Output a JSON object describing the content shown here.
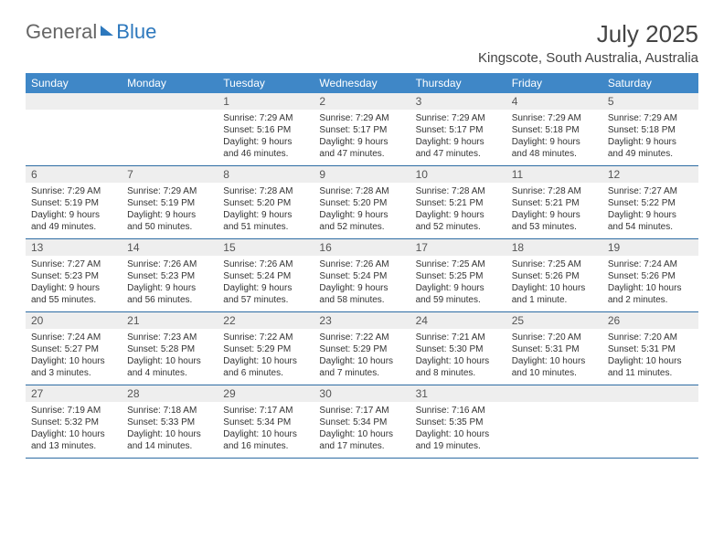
{
  "logo": {
    "text_general": "General",
    "text_blue": "Blue"
  },
  "header": {
    "month_title": "July 2025",
    "location": "Kingscote, South Australia, Australia"
  },
  "colors": {
    "header_bg": "#3f87c7",
    "header_text": "#ffffff",
    "daynum_bg": "#eeeeee",
    "week_border": "#2d6ca3",
    "logo_accent": "#2d78bd"
  },
  "day_headers": [
    "Sunday",
    "Monday",
    "Tuesday",
    "Wednesday",
    "Thursday",
    "Friday",
    "Saturday"
  ],
  "weeks": [
    [
      {
        "n": "",
        "sunrise": "",
        "sunset": "",
        "daylight1": "",
        "daylight2": ""
      },
      {
        "n": "",
        "sunrise": "",
        "sunset": "",
        "daylight1": "",
        "daylight2": ""
      },
      {
        "n": "1",
        "sunrise": "Sunrise: 7:29 AM",
        "sunset": "Sunset: 5:16 PM",
        "daylight1": "Daylight: 9 hours",
        "daylight2": "and 46 minutes."
      },
      {
        "n": "2",
        "sunrise": "Sunrise: 7:29 AM",
        "sunset": "Sunset: 5:17 PM",
        "daylight1": "Daylight: 9 hours",
        "daylight2": "and 47 minutes."
      },
      {
        "n": "3",
        "sunrise": "Sunrise: 7:29 AM",
        "sunset": "Sunset: 5:17 PM",
        "daylight1": "Daylight: 9 hours",
        "daylight2": "and 47 minutes."
      },
      {
        "n": "4",
        "sunrise": "Sunrise: 7:29 AM",
        "sunset": "Sunset: 5:18 PM",
        "daylight1": "Daylight: 9 hours",
        "daylight2": "and 48 minutes."
      },
      {
        "n": "5",
        "sunrise": "Sunrise: 7:29 AM",
        "sunset": "Sunset: 5:18 PM",
        "daylight1": "Daylight: 9 hours",
        "daylight2": "and 49 minutes."
      }
    ],
    [
      {
        "n": "6",
        "sunrise": "Sunrise: 7:29 AM",
        "sunset": "Sunset: 5:19 PM",
        "daylight1": "Daylight: 9 hours",
        "daylight2": "and 49 minutes."
      },
      {
        "n": "7",
        "sunrise": "Sunrise: 7:29 AM",
        "sunset": "Sunset: 5:19 PM",
        "daylight1": "Daylight: 9 hours",
        "daylight2": "and 50 minutes."
      },
      {
        "n": "8",
        "sunrise": "Sunrise: 7:28 AM",
        "sunset": "Sunset: 5:20 PM",
        "daylight1": "Daylight: 9 hours",
        "daylight2": "and 51 minutes."
      },
      {
        "n": "9",
        "sunrise": "Sunrise: 7:28 AM",
        "sunset": "Sunset: 5:20 PM",
        "daylight1": "Daylight: 9 hours",
        "daylight2": "and 52 minutes."
      },
      {
        "n": "10",
        "sunrise": "Sunrise: 7:28 AM",
        "sunset": "Sunset: 5:21 PM",
        "daylight1": "Daylight: 9 hours",
        "daylight2": "and 52 minutes."
      },
      {
        "n": "11",
        "sunrise": "Sunrise: 7:28 AM",
        "sunset": "Sunset: 5:21 PM",
        "daylight1": "Daylight: 9 hours",
        "daylight2": "and 53 minutes."
      },
      {
        "n": "12",
        "sunrise": "Sunrise: 7:27 AM",
        "sunset": "Sunset: 5:22 PM",
        "daylight1": "Daylight: 9 hours",
        "daylight2": "and 54 minutes."
      }
    ],
    [
      {
        "n": "13",
        "sunrise": "Sunrise: 7:27 AM",
        "sunset": "Sunset: 5:23 PM",
        "daylight1": "Daylight: 9 hours",
        "daylight2": "and 55 minutes."
      },
      {
        "n": "14",
        "sunrise": "Sunrise: 7:26 AM",
        "sunset": "Sunset: 5:23 PM",
        "daylight1": "Daylight: 9 hours",
        "daylight2": "and 56 minutes."
      },
      {
        "n": "15",
        "sunrise": "Sunrise: 7:26 AM",
        "sunset": "Sunset: 5:24 PM",
        "daylight1": "Daylight: 9 hours",
        "daylight2": "and 57 minutes."
      },
      {
        "n": "16",
        "sunrise": "Sunrise: 7:26 AM",
        "sunset": "Sunset: 5:24 PM",
        "daylight1": "Daylight: 9 hours",
        "daylight2": "and 58 minutes."
      },
      {
        "n": "17",
        "sunrise": "Sunrise: 7:25 AM",
        "sunset": "Sunset: 5:25 PM",
        "daylight1": "Daylight: 9 hours",
        "daylight2": "and 59 minutes."
      },
      {
        "n": "18",
        "sunrise": "Sunrise: 7:25 AM",
        "sunset": "Sunset: 5:26 PM",
        "daylight1": "Daylight: 10 hours",
        "daylight2": "and 1 minute."
      },
      {
        "n": "19",
        "sunrise": "Sunrise: 7:24 AM",
        "sunset": "Sunset: 5:26 PM",
        "daylight1": "Daylight: 10 hours",
        "daylight2": "and 2 minutes."
      }
    ],
    [
      {
        "n": "20",
        "sunrise": "Sunrise: 7:24 AM",
        "sunset": "Sunset: 5:27 PM",
        "daylight1": "Daylight: 10 hours",
        "daylight2": "and 3 minutes."
      },
      {
        "n": "21",
        "sunrise": "Sunrise: 7:23 AM",
        "sunset": "Sunset: 5:28 PM",
        "daylight1": "Daylight: 10 hours",
        "daylight2": "and 4 minutes."
      },
      {
        "n": "22",
        "sunrise": "Sunrise: 7:22 AM",
        "sunset": "Sunset: 5:29 PM",
        "daylight1": "Daylight: 10 hours",
        "daylight2": "and 6 minutes."
      },
      {
        "n": "23",
        "sunrise": "Sunrise: 7:22 AM",
        "sunset": "Sunset: 5:29 PM",
        "daylight1": "Daylight: 10 hours",
        "daylight2": "and 7 minutes."
      },
      {
        "n": "24",
        "sunrise": "Sunrise: 7:21 AM",
        "sunset": "Sunset: 5:30 PM",
        "daylight1": "Daylight: 10 hours",
        "daylight2": "and 8 minutes."
      },
      {
        "n": "25",
        "sunrise": "Sunrise: 7:20 AM",
        "sunset": "Sunset: 5:31 PM",
        "daylight1": "Daylight: 10 hours",
        "daylight2": "and 10 minutes."
      },
      {
        "n": "26",
        "sunrise": "Sunrise: 7:20 AM",
        "sunset": "Sunset: 5:31 PM",
        "daylight1": "Daylight: 10 hours",
        "daylight2": "and 11 minutes."
      }
    ],
    [
      {
        "n": "27",
        "sunrise": "Sunrise: 7:19 AM",
        "sunset": "Sunset: 5:32 PM",
        "daylight1": "Daylight: 10 hours",
        "daylight2": "and 13 minutes."
      },
      {
        "n": "28",
        "sunrise": "Sunrise: 7:18 AM",
        "sunset": "Sunset: 5:33 PM",
        "daylight1": "Daylight: 10 hours",
        "daylight2": "and 14 minutes."
      },
      {
        "n": "29",
        "sunrise": "Sunrise: 7:17 AM",
        "sunset": "Sunset: 5:34 PM",
        "daylight1": "Daylight: 10 hours",
        "daylight2": "and 16 minutes."
      },
      {
        "n": "30",
        "sunrise": "Sunrise: 7:17 AM",
        "sunset": "Sunset: 5:34 PM",
        "daylight1": "Daylight: 10 hours",
        "daylight2": "and 17 minutes."
      },
      {
        "n": "31",
        "sunrise": "Sunrise: 7:16 AM",
        "sunset": "Sunset: 5:35 PM",
        "daylight1": "Daylight: 10 hours",
        "daylight2": "and 19 minutes."
      },
      {
        "n": "",
        "sunrise": "",
        "sunset": "",
        "daylight1": "",
        "daylight2": ""
      },
      {
        "n": "",
        "sunrise": "",
        "sunset": "",
        "daylight1": "",
        "daylight2": ""
      }
    ]
  ]
}
